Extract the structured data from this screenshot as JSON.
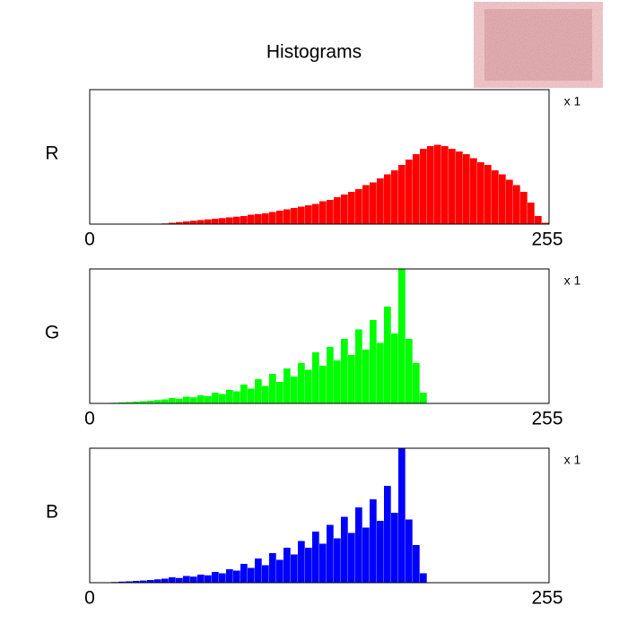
{
  "chart_data": {
    "type": "histogram",
    "title": "Histograms",
    "scale_label": "x 1",
    "bins": [
      0,
      4,
      8,
      12,
      16,
      20,
      24,
      28,
      32,
      36,
      40,
      44,
      48,
      52,
      56,
      60,
      64,
      68,
      72,
      76,
      80,
      84,
      88,
      92,
      96,
      100,
      104,
      108,
      112,
      116,
      120,
      124,
      128,
      132,
      136,
      140,
      144,
      148,
      152,
      156,
      160,
      164,
      168,
      172,
      176,
      180,
      184,
      188,
      192,
      196,
      200,
      204,
      208,
      212,
      216,
      220,
      224,
      228,
      232,
      236,
      240,
      244,
      248,
      252,
      256
    ],
    "xlim": [
      0,
      256
    ],
    "xticks": [
      0,
      255
    ],
    "ylim": [
      0,
      100
    ],
    "series": [
      {
        "name": "R",
        "color": "#ff0000",
        "values": [
          0,
          0,
          0,
          0,
          0,
          0,
          0,
          0,
          0,
          0.3,
          0.5,
          1,
          1.5,
          2,
          2.5,
          3,
          3.5,
          4,
          4.5,
          5,
          5.5,
          6,
          7,
          7.5,
          8,
          9,
          10,
          11,
          12,
          13,
          14,
          15,
          17,
          18,
          20,
          22,
          24,
          26,
          29,
          31,
          34,
          37,
          40,
          44,
          48,
          52,
          56,
          58,
          59,
          58,
          56,
          54,
          52,
          49,
          46,
          44,
          40,
          37,
          33,
          29,
          24,
          16,
          6,
          1
        ]
      },
      {
        "name": "G",
        "color": "#00ff00",
        "values": [
          0,
          0,
          0.3,
          0.5,
          0.8,
          1,
          1.3,
          1.6,
          2,
          2.5,
          3,
          4,
          3.5,
          5,
          4.5,
          6,
          5.5,
          8,
          7,
          10,
          9,
          14,
          11,
          18,
          13,
          22,
          16,
          26,
          20,
          30,
          25,
          38,
          28,
          42,
          32,
          48,
          36,
          55,
          40,
          62,
          45,
          72,
          52,
          100,
          48,
          30,
          8,
          0,
          0,
          0,
          0,
          0,
          0,
          0,
          0,
          0,
          0,
          0,
          0,
          0,
          0,
          0,
          0,
          0
        ]
      },
      {
        "name": "B",
        "color": "#0000ff",
        "values": [
          0,
          0,
          0.3,
          0.5,
          0.8,
          1,
          1.3,
          1.6,
          2,
          2.5,
          3,
          4,
          3.5,
          5,
          4.5,
          6,
          5.5,
          8,
          7,
          10,
          9,
          14,
          11,
          18,
          13,
          22,
          17,
          26,
          21,
          31,
          26,
          38,
          29,
          43,
          33,
          49,
          37,
          56,
          41,
          62,
          46,
          72,
          52,
          100,
          47,
          28,
          7,
          0,
          0,
          0,
          0,
          0,
          0,
          0,
          0,
          0,
          0,
          0,
          0,
          0,
          0,
          0,
          0,
          0
        ]
      }
    ]
  }
}
